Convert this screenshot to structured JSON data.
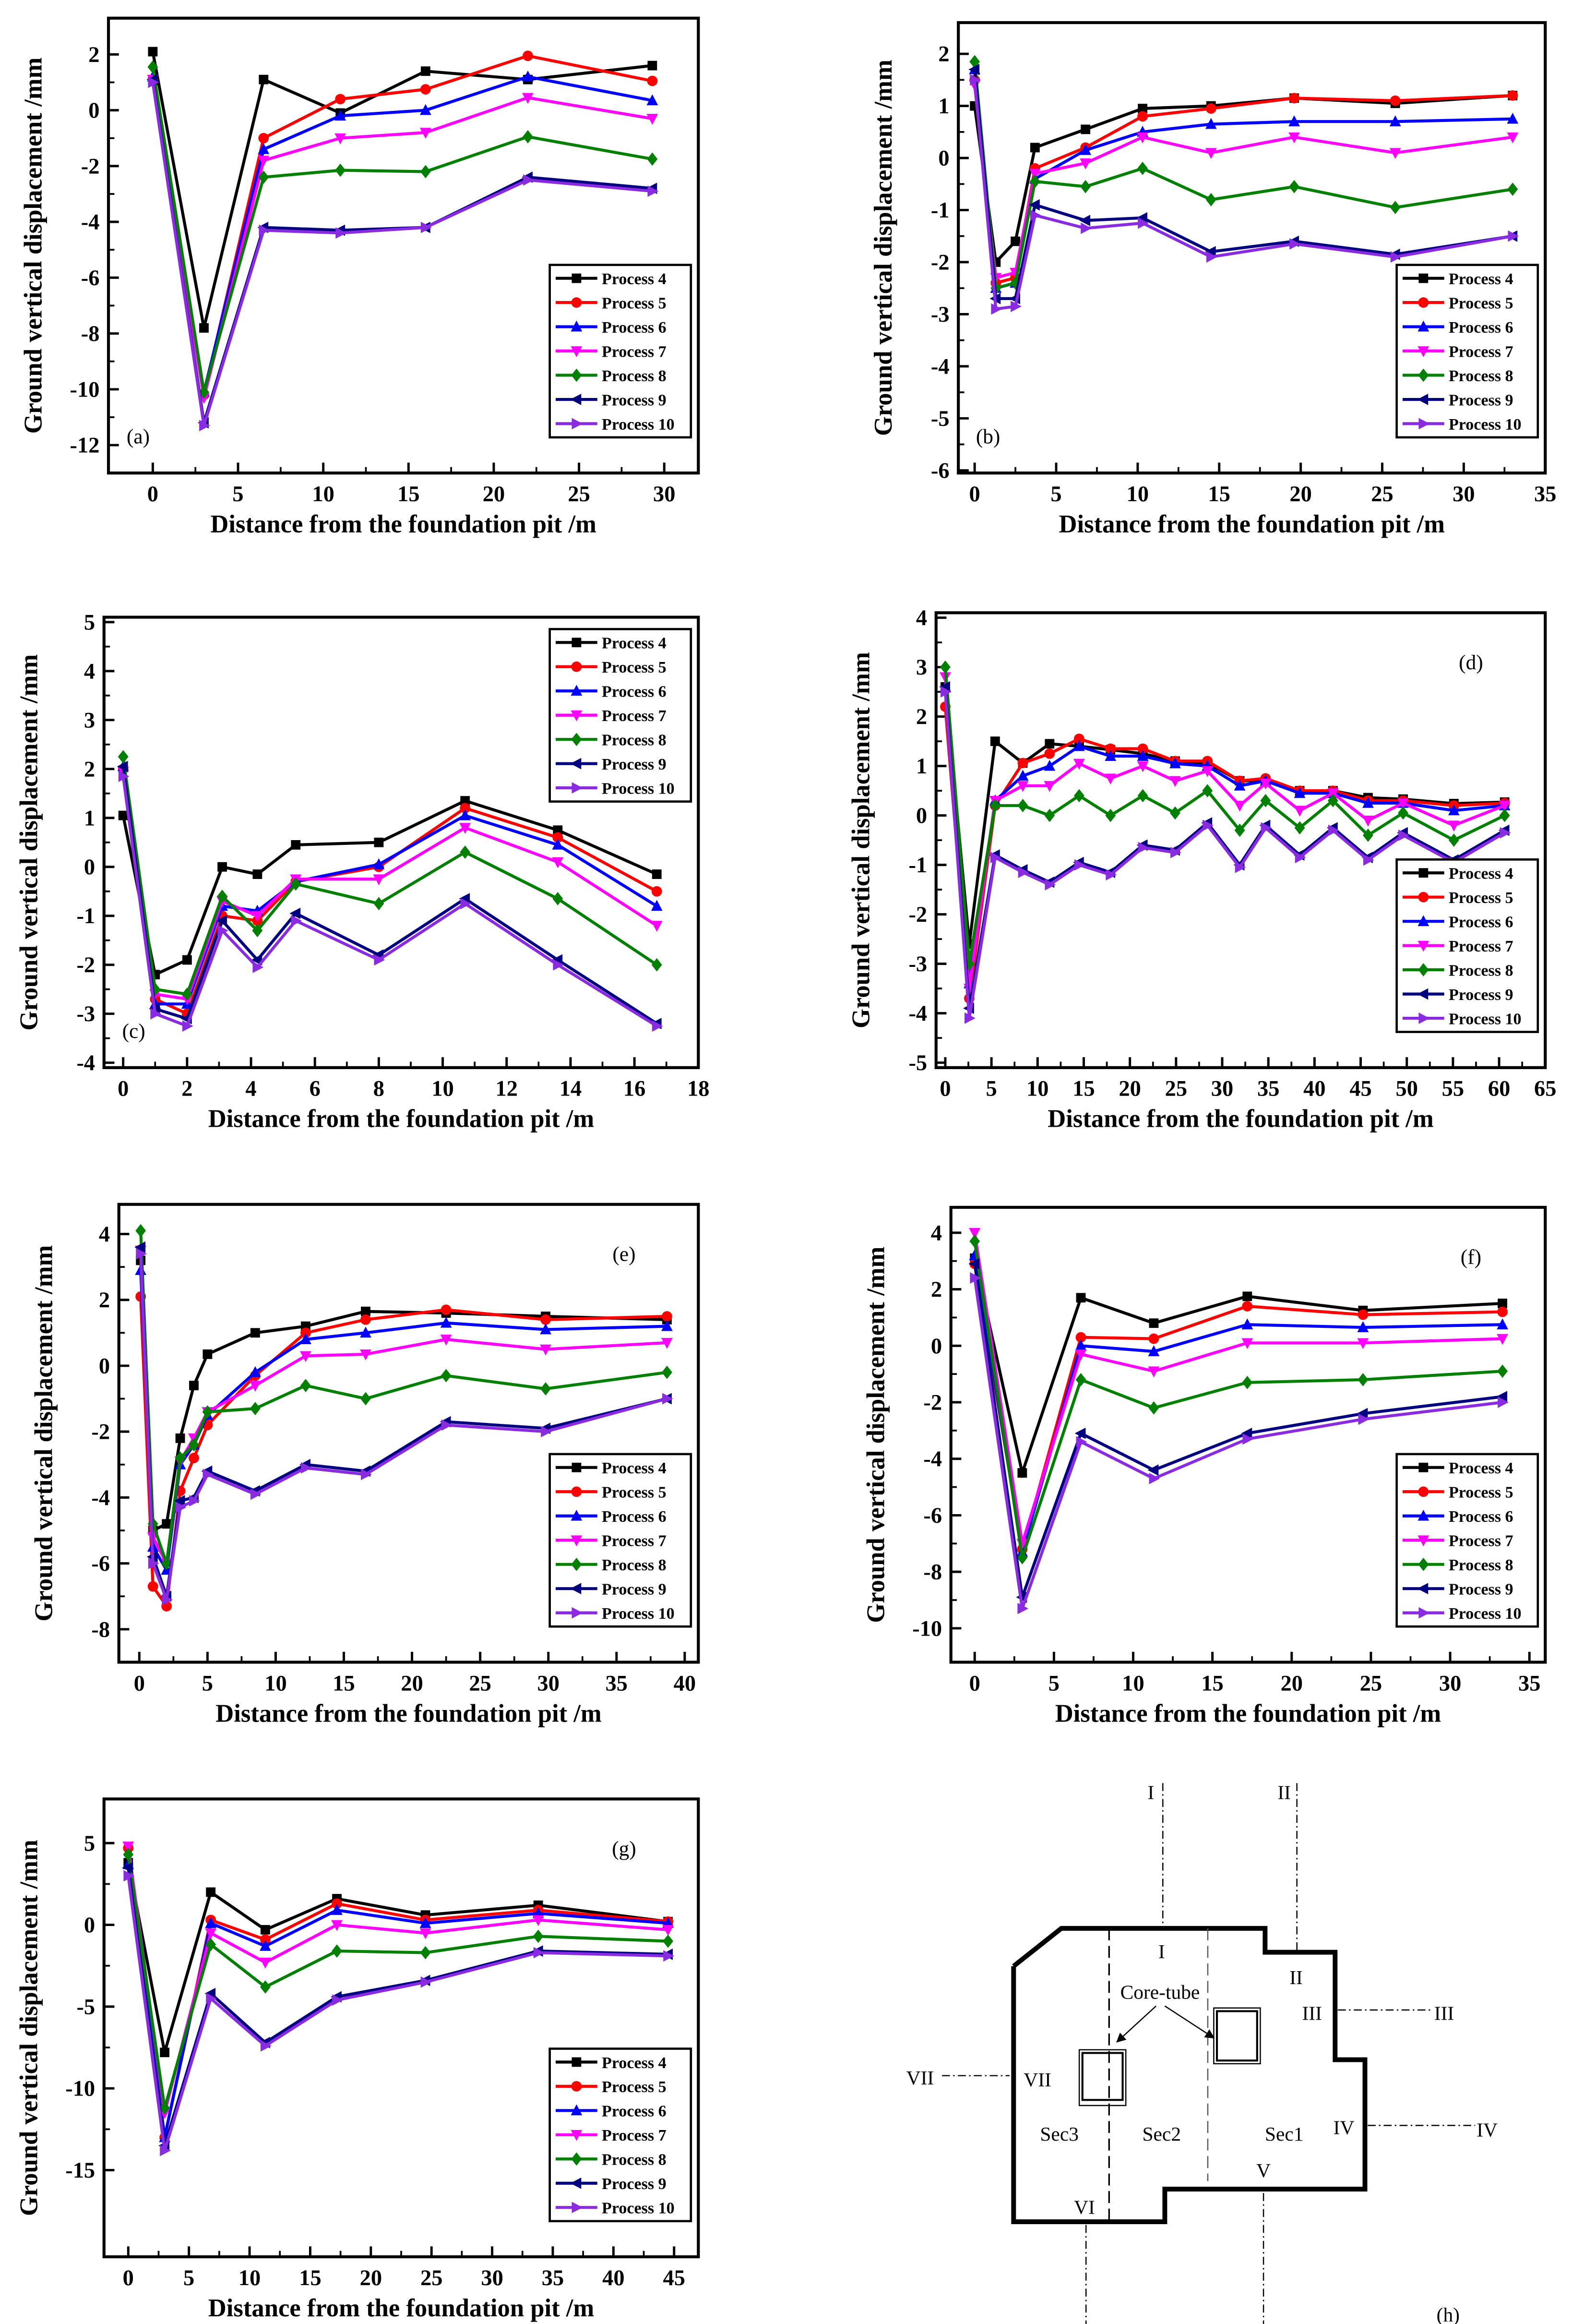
{
  "common": {
    "xlabel": "Distance from the foundation pit /m",
    "ylabel": "Ground vertical displacement /mm",
    "series_names": [
      "Process 4",
      "Process 5",
      "Process 6",
      "Process 7",
      "Process 8",
      "Process 9",
      "Process 10"
    ],
    "series_colors": [
      "#000000",
      "#ff0000",
      "#0000ff",
      "#ff00ff",
      "#008000",
      "#000080",
      "#8a2be2"
    ],
    "series_markers": [
      "square",
      "circle",
      "triangle-up",
      "triangle-down",
      "diamond",
      "triangle-left",
      "triangle-right"
    ]
  },
  "chart_data": [
    {
      "panel": "(a)",
      "type": "line",
      "legend": "bottom-right",
      "label_corner": "bottom-left",
      "xlim": [
        -2.6,
        32
      ],
      "ylim": [
        -13,
        3.3
      ],
      "xticks": [
        0,
        5,
        10,
        15,
        20,
        25,
        30
      ],
      "yticks": [
        -12,
        -10,
        -8,
        -6,
        -4,
        -2,
        0,
        2
      ],
      "x": [
        0,
        3,
        6.5,
        11,
        16,
        22,
        29.3
      ],
      "series": [
        [
          2.1,
          -7.8,
          1.1,
          -0.1,
          1.4,
          1.1,
          1.6
        ],
        [
          1.1,
          -10.2,
          -1.0,
          0.4,
          0.75,
          1.95,
          1.05
        ],
        [
          1.2,
          -10.1,
          -1.4,
          -0.2,
          0,
          1.2,
          0.35
        ],
        [
          1.1,
          -10.3,
          -1.8,
          -1.0,
          -0.8,
          0.45,
          -0.3
        ],
        [
          1.55,
          -10.1,
          -2.4,
          -2.15,
          -2.2,
          -0.95,
          -1.75
        ],
        [
          1.1,
          -11.2,
          -4.2,
          -4.3,
          -4.2,
          -2.4,
          -2.8
        ],
        [
          1.0,
          -11.3,
          -4.3,
          -4.4,
          -4.2,
          -2.5,
          -2.9
        ]
      ]
    },
    {
      "panel": "(b)",
      "type": "line",
      "legend": "bottom-right",
      "label_corner": "bottom-left",
      "xlim": [
        -1,
        35
      ],
      "ylim": [
        -6.05,
        2.6
      ],
      "xticks": [
        0,
        5,
        10,
        15,
        20,
        25,
        30,
        35
      ],
      "yticks": [
        -6,
        -5,
        -4,
        -3,
        -2,
        -1,
        0,
        1,
        2
      ],
      "x": [
        0,
        1.3,
        2.5,
        3.7,
        6.8,
        10.3,
        14.5,
        19.6,
        25.8,
        33
      ],
      "series": [
        [
          1.0,
          -2.0,
          -1.6,
          0.2,
          0.55,
          0.95,
          1.0,
          1.15,
          1.05,
          1.2
        ],
        [
          1.5,
          -2.4,
          -2.3,
          -0.2,
          0.2,
          0.8,
          0.95,
          1.15,
          1.1,
          1.2
        ],
        [
          1.7,
          -2.5,
          -2.4,
          -0.4,
          0.15,
          0.5,
          0.65,
          0.7,
          0.7,
          0.75
        ],
        [
          1.4,
          -2.3,
          -2.2,
          -0.3,
          -0.1,
          0.4,
          0.1,
          0.4,
          0.1,
          0.4
        ],
        [
          1.85,
          -2.5,
          -2.4,
          -0.45,
          -0.55,
          -0.2,
          -0.8,
          -0.55,
          -0.95,
          -0.6
        ],
        [
          1.7,
          -2.7,
          -2.7,
          -0.9,
          -1.2,
          -1.15,
          -1.8,
          -1.6,
          -1.85,
          -1.5
        ],
        [
          1.5,
          -2.9,
          -2.85,
          -1.1,
          -1.35,
          -1.25,
          -1.9,
          -1.65,
          -1.9,
          -1.5
        ]
      ]
    },
    {
      "panel": "(c)",
      "type": "line",
      "legend": "top-right",
      "label_corner": "bottom-left",
      "xlim": [
        -0.6,
        18
      ],
      "ylim": [
        -4.1,
        5.1
      ],
      "xticks": [
        0,
        2,
        4,
        6,
        8,
        10,
        12,
        14,
        16,
        18
      ],
      "yticks": [
        -4,
        -3,
        -2,
        -1,
        0,
        1,
        2,
        3,
        4,
        5
      ],
      "x": [
        0,
        1,
        2,
        3.1,
        4.2,
        5.4,
        8,
        10.7,
        13.6,
        16.7
      ],
      "series": [
        [
          1.05,
          -2.2,
          -1.9,
          0,
          -0.15,
          0.45,
          0.5,
          1.35,
          0.75,
          -0.15
        ],
        [
          2.0,
          -2.7,
          -3.0,
          -1.0,
          -1.1,
          -0.3,
          0,
          1.2,
          0.6,
          -0.5
        ],
        [
          2.05,
          -2.8,
          -2.8,
          -0.8,
          -0.9,
          -0.3,
          0.05,
          1.05,
          0.45,
          -0.8
        ],
        [
          1.95,
          -2.6,
          -2.7,
          -0.7,
          -1.0,
          -0.25,
          -0.25,
          0.8,
          0.1,
          -1.2
        ],
        [
          2.25,
          -2.5,
          -2.6,
          -0.6,
          -1.3,
          -0.35,
          -0.75,
          0.3,
          -0.65,
          -2.0
        ],
        [
          2.05,
          -2.9,
          -3.1,
          -1.1,
          -1.9,
          -0.95,
          -1.8,
          -0.65,
          -1.9,
          -3.2
        ],
        [
          1.85,
          -3.0,
          -3.25,
          -1.3,
          -2.05,
          -1.1,
          -1.9,
          -0.75,
          -2.0,
          -3.25
        ]
      ]
    },
    {
      "panel": "(d)",
      "type": "line",
      "legend": "bottom-right",
      "label_corner": "top-right",
      "xlim": [
        -1,
        65
      ],
      "ylim": [
        -5.1,
        4.1
      ],
      "xticks": [
        0,
        5,
        10,
        15,
        20,
        25,
        30,
        35,
        40,
        45,
        50,
        55,
        60,
        65
      ],
      "yticks": [
        -5,
        -4,
        -3,
        -2,
        -1,
        0,
        1,
        2,
        3,
        4
      ],
      "x": [
        0,
        2.6,
        5.4,
        8.4,
        11.3,
        14.5,
        17.9,
        21.4,
        24.9,
        28.4,
        31.9,
        34.7,
        38.4,
        42,
        45.8,
        49.6,
        55.1,
        60.6
      ],
      "series": [
        [
          2.6,
          -2.6,
          1.5,
          1.06,
          1.45,
          1.4,
          1.33,
          1.25,
          1.1,
          1.06,
          0.7,
          0.7,
          0.5,
          0.5,
          0.36,
          0.33,
          0.24,
          0.27
        ],
        [
          2.2,
          -3.7,
          0.2,
          1.06,
          1.25,
          1.55,
          1.35,
          1.35,
          1.1,
          1.1,
          0.7,
          0.75,
          0.5,
          0.5,
          0.3,
          0.3,
          0.2,
          0.25
        ],
        [
          2.6,
          -3.4,
          0.3,
          0.8,
          1.0,
          1.4,
          1.2,
          1.2,
          1.05,
          1.0,
          0.6,
          0.7,
          0.45,
          0.45,
          0.25,
          0.25,
          0.1,
          0.2
        ],
        [
          2.8,
          -3.5,
          0.3,
          0.6,
          0.6,
          1.05,
          0.75,
          1.0,
          0.7,
          0.9,
          0.2,
          0.65,
          0.1,
          0.45,
          -0.1,
          0.25,
          -0.2,
          0.2
        ],
        [
          3.0,
          -3.0,
          0.2,
          0.2,
          0.0,
          0.4,
          0.0,
          0.4,
          0.05,
          0.5,
          -0.3,
          0.3,
          -0.25,
          0.3,
          -0.4,
          0.05,
          -0.5,
          0.0
        ],
        [
          2.6,
          -3.9,
          -0.8,
          -1.1,
          -1.35,
          -0.95,
          -1.15,
          -0.6,
          -0.7,
          -0.15,
          -1.0,
          -0.2,
          -0.8,
          -0.25,
          -0.85,
          -0.35,
          -0.9,
          -0.3
        ],
        [
          2.5,
          -4.1,
          -0.85,
          -1.15,
          -1.4,
          -1.0,
          -1.2,
          -0.65,
          -0.75,
          -0.2,
          -1.05,
          -0.25,
          -0.85,
          -0.3,
          -0.9,
          -0.4,
          -0.95,
          -0.35
        ]
      ]
    },
    {
      "panel": "(e)",
      "type": "line",
      "legend": "bottom-right",
      "label_corner": "top-right",
      "xlim": [
        -1.5,
        41
      ],
      "ylim": [
        -9,
        4.9
      ],
      "xticks": [
        0,
        5,
        10,
        15,
        20,
        25,
        30,
        35,
        40
      ],
      "yticks": [
        -8,
        -6,
        -4,
        -2,
        0,
        2,
        4
      ],
      "x": [
        0.1,
        1,
        2,
        3,
        4,
        5,
        8.5,
        12.2,
        16.6,
        22.5,
        29.8,
        38.7
      ],
      "series": [
        [
          3.2,
          -5.0,
          -4.8,
          -2.2,
          -0.6,
          0.35,
          1.0,
          1.2,
          1.65,
          1.6,
          1.5,
          1.4
        ],
        [
          2.1,
          -6.7,
          -7.3,
          -3.8,
          -2.8,
          -1.8,
          -0.3,
          1.0,
          1.4,
          1.7,
          1.4,
          1.5
        ],
        [
          2.9,
          -5.5,
          -6.2,
          -3.0,
          -2.4,
          -1.5,
          -0.2,
          0.8,
          1.0,
          1.3,
          1.1,
          1.2
        ],
        [
          3.5,
          -5.2,
          -6.0,
          -2.9,
          -2.2,
          -1.4,
          -0.6,
          0.3,
          0.35,
          0.8,
          0.5,
          0.7
        ],
        [
          4.1,
          -4.8,
          -6.0,
          -2.8,
          -2.4,
          -1.4,
          -1.3,
          -0.6,
          -1.0,
          -0.3,
          -0.7,
          -0.2
        ],
        [
          3.6,
          -5.8,
          -7.0,
          -4.1,
          -4.0,
          -3.2,
          -3.8,
          -3.0,
          -3.2,
          -1.7,
          -1.9,
          -1.0
        ],
        [
          3.4,
          -6.0,
          -7.1,
          -4.3,
          -4.1,
          -3.3,
          -3.9,
          -3.1,
          -3.3,
          -1.8,
          -2.0,
          -1.0
        ]
      ]
    },
    {
      "panel": "(f)",
      "type": "line",
      "legend": "bottom-right",
      "label_corner": "top-right",
      "xlim": [
        -1.5,
        36
      ],
      "ylim": [
        -11.2,
        4.9
      ],
      "xticks": [
        0,
        5,
        10,
        15,
        20,
        25,
        30,
        35
      ],
      "yticks": [
        -10,
        -8,
        -6,
        -4,
        -2,
        0,
        2,
        4
      ],
      "x": [
        0,
        3,
        6.7,
        11.3,
        17.2,
        24.5,
        33.3
      ],
      "series": [
        [
          3.1,
          -4.5,
          1.7,
          0.8,
          1.75,
          1.25,
          1.5
        ],
        [
          2.9,
          -7.2,
          0.3,
          0.25,
          1.4,
          1.1,
          1.2
        ],
        [
          3.2,
          -7.3,
          0.0,
          -0.2,
          0.75,
          0.65,
          0.75
        ],
        [
          4.0,
          -7.0,
          -0.3,
          -0.9,
          0.1,
          0.1,
          0.25
        ],
        [
          3.7,
          -7.5,
          -1.2,
          -2.2,
          -1.3,
          -1.2,
          -0.9
        ],
        [
          2.9,
          -8.9,
          -3.1,
          -4.4,
          -3.1,
          -2.4,
          -1.8
        ],
        [
          2.4,
          -9.3,
          -3.4,
          -4.7,
          -3.3,
          -2.6,
          -2.0
        ]
      ]
    },
    {
      "panel": "(g)",
      "type": "line",
      "legend": "bottom-right",
      "label_corner": "top-right",
      "xlim": [
        -2,
        47
      ],
      "ylim": [
        -20.3,
        7.7
      ],
      "xticks": [
        0,
        5,
        10,
        15,
        20,
        25,
        30,
        35,
        40,
        45
      ],
      "yticks": [
        -15,
        -10,
        -5,
        0,
        5
      ],
      "x": [
        0,
        3,
        6.8,
        11.3,
        17.2,
        24.5,
        33.8,
        44.5
      ],
      "series": [
        [
          3.8,
          -7.8,
          2.0,
          -0.3,
          1.6,
          0.6,
          1.2,
          0.2
        ],
        [
          4.7,
          -13,
          0.3,
          -0.9,
          1.3,
          0.3,
          0.9,
          0.2
        ],
        [
          3.7,
          -13,
          0.1,
          -1.3,
          0.9,
          0.1,
          0.7,
          0.1
        ],
        [
          4.8,
          -11.5,
          -0.5,
          -2.3,
          0.0,
          -0.5,
          0.3,
          -0.3
        ],
        [
          4.3,
          -11.2,
          -1.2,
          -3.8,
          -1.6,
          -1.7,
          -0.7,
          -1.0
        ],
        [
          3.5,
          -13.5,
          -4.2,
          -7.2,
          -4.4,
          -3.4,
          -1.6,
          -1.8
        ],
        [
          3.0,
          -13.8,
          -4.5,
          -7.4,
          -4.6,
          -3.5,
          -1.7,
          -1.9
        ]
      ]
    }
  ],
  "diagram": {
    "panel": "(h)",
    "core_tube": "Core-tube",
    "sections": [
      "Sec3",
      "Sec2",
      "Sec1"
    ],
    "lines": {
      "I": "I",
      "II": "II",
      "III": "III",
      "IV": "IV",
      "V": "V",
      "VI": "VI",
      "VII": "VII"
    }
  }
}
